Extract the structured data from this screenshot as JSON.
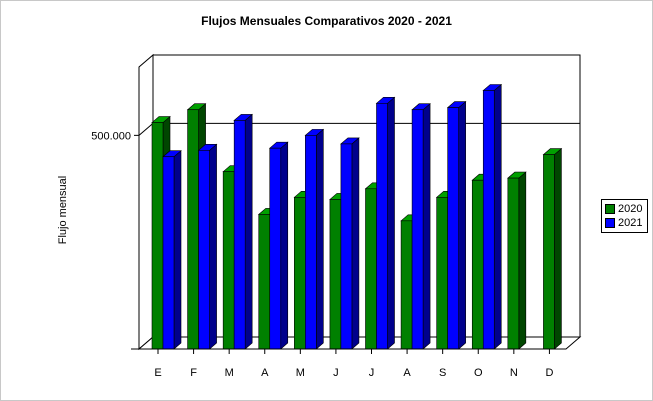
{
  "chart_data": {
    "type": "bar",
    "title": "Flujos Mensuales Comparativos 2020 - 2021",
    "xlabel": "",
    "ylabel": "Flujo mensual",
    "categories": [
      "E",
      "F",
      "M",
      "A",
      "M",
      "J",
      "J",
      "A",
      "S",
      "O",
      "N",
      "D"
    ],
    "series": [
      {
        "name": "2020",
        "color": "#008000",
        "values": [
          530000,
          560000,
          415000,
          315000,
          355000,
          350000,
          375000,
          300000,
          355000,
          395000,
          400000,
          455000
        ]
      },
      {
        "name": "2021",
        "color": "#0000ff",
        "values": [
          450000,
          465000,
          535000,
          470000,
          500000,
          480000,
          575000,
          560000,
          565000,
          605000,
          null,
          null
        ]
      }
    ],
    "ylim": [
      0,
      660000
    ],
    "y_ticks": [
      {
        "value": 500000,
        "label": "500.000"
      }
    ],
    "gridlines": true,
    "three_d": true,
    "legend_position": "right"
  }
}
